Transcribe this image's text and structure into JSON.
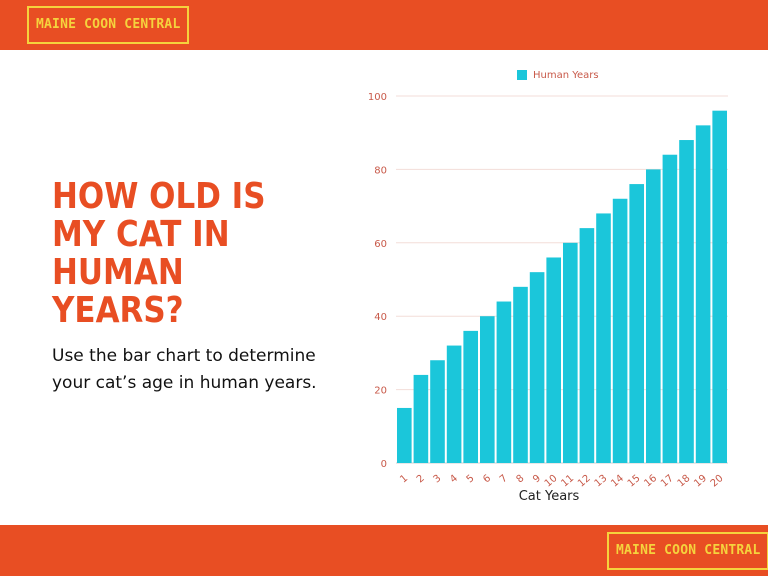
{
  "brand": {
    "top": "MAINE COON CENTRAL",
    "bottom": "MAINE COON CENTRAL"
  },
  "headline": "HOW OLD IS MY CAT IN HUMAN YEARS?",
  "body": "Use the bar chart to determine your cat’s age in human years.",
  "colors": {
    "accent": "#e84e23",
    "brand_text": "#f5d33d",
    "bar": "#1bc6da"
  },
  "chart_data": {
    "type": "bar",
    "categories": [
      "1",
      "2",
      "3",
      "4",
      "5",
      "6",
      "7",
      "8",
      "9",
      "10",
      "11",
      "12",
      "13",
      "14",
      "15",
      "16",
      "17",
      "18",
      "19",
      "20"
    ],
    "series": [
      {
        "name": "Human Years",
        "values": [
          15,
          24,
          28,
          32,
          36,
          40,
          44,
          48,
          52,
          56,
          60,
          64,
          68,
          72,
          76,
          80,
          84,
          88,
          92,
          96
        ]
      }
    ],
    "xlabel": "Cat Years",
    "ylabel": "",
    "ylim": [
      0,
      100
    ],
    "yticks": [
      0,
      20,
      40,
      60,
      80,
      100
    ],
    "grid": true,
    "legend": "top-center"
  }
}
